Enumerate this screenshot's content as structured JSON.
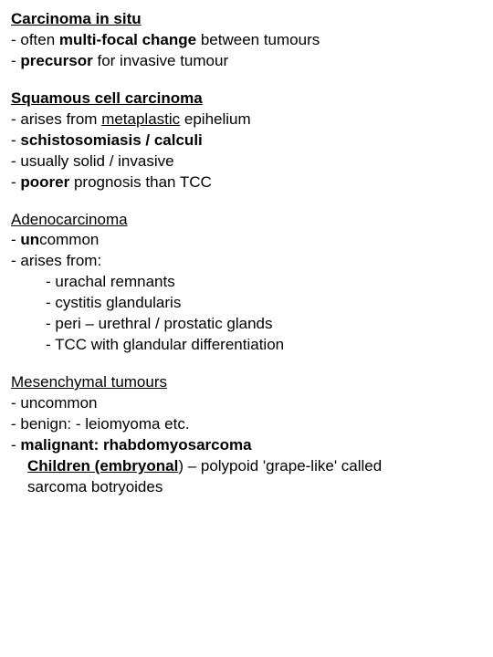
{
  "s1": {
    "title_pre": "Carcinoma in situ",
    "l1a": "- often ",
    "l1b": "multi-focal change",
    "l1c": " between tumours",
    "l2a": "- ",
    "l2b": "precursor",
    "l2c": " for invasive tumour"
  },
  "s2": {
    "title": "Squamous cell carcinoma",
    "l1a": "- arises from ",
    "l1b": "metaplastic",
    "l1c": " epihelium",
    "l2a": "- ",
    "l2b": "schistosomiasis / calculi",
    "l3": "- usually solid / invasive",
    "l4a": "- ",
    "l4b": "poorer",
    "l4c": " prognosis than TCC"
  },
  "s3": {
    "title": "Adenocarcinoma",
    "l1a": "- ",
    "l1b": "un",
    "l1c": "common",
    "l2": "- arises from:",
    "sub1": "- urachal remnants",
    "sub2": "- cystitis glandularis",
    "sub3": "- peri – urethral / prostatic glands",
    "sub4": "- TCC with glandular differentiation"
  },
  "s4": {
    "title": "Mesenchymal tumours",
    "l1": "- uncommon",
    "l2": "- benign: - leiomyoma etc.",
    "l3a": "- ",
    "l3b": "malignant: rhabdomyosarcoma",
    "l4a": "Children (embryonal",
    "l4b": ") – polypoid 'grape-like' called",
    "l5": "sarcoma botryoides"
  }
}
